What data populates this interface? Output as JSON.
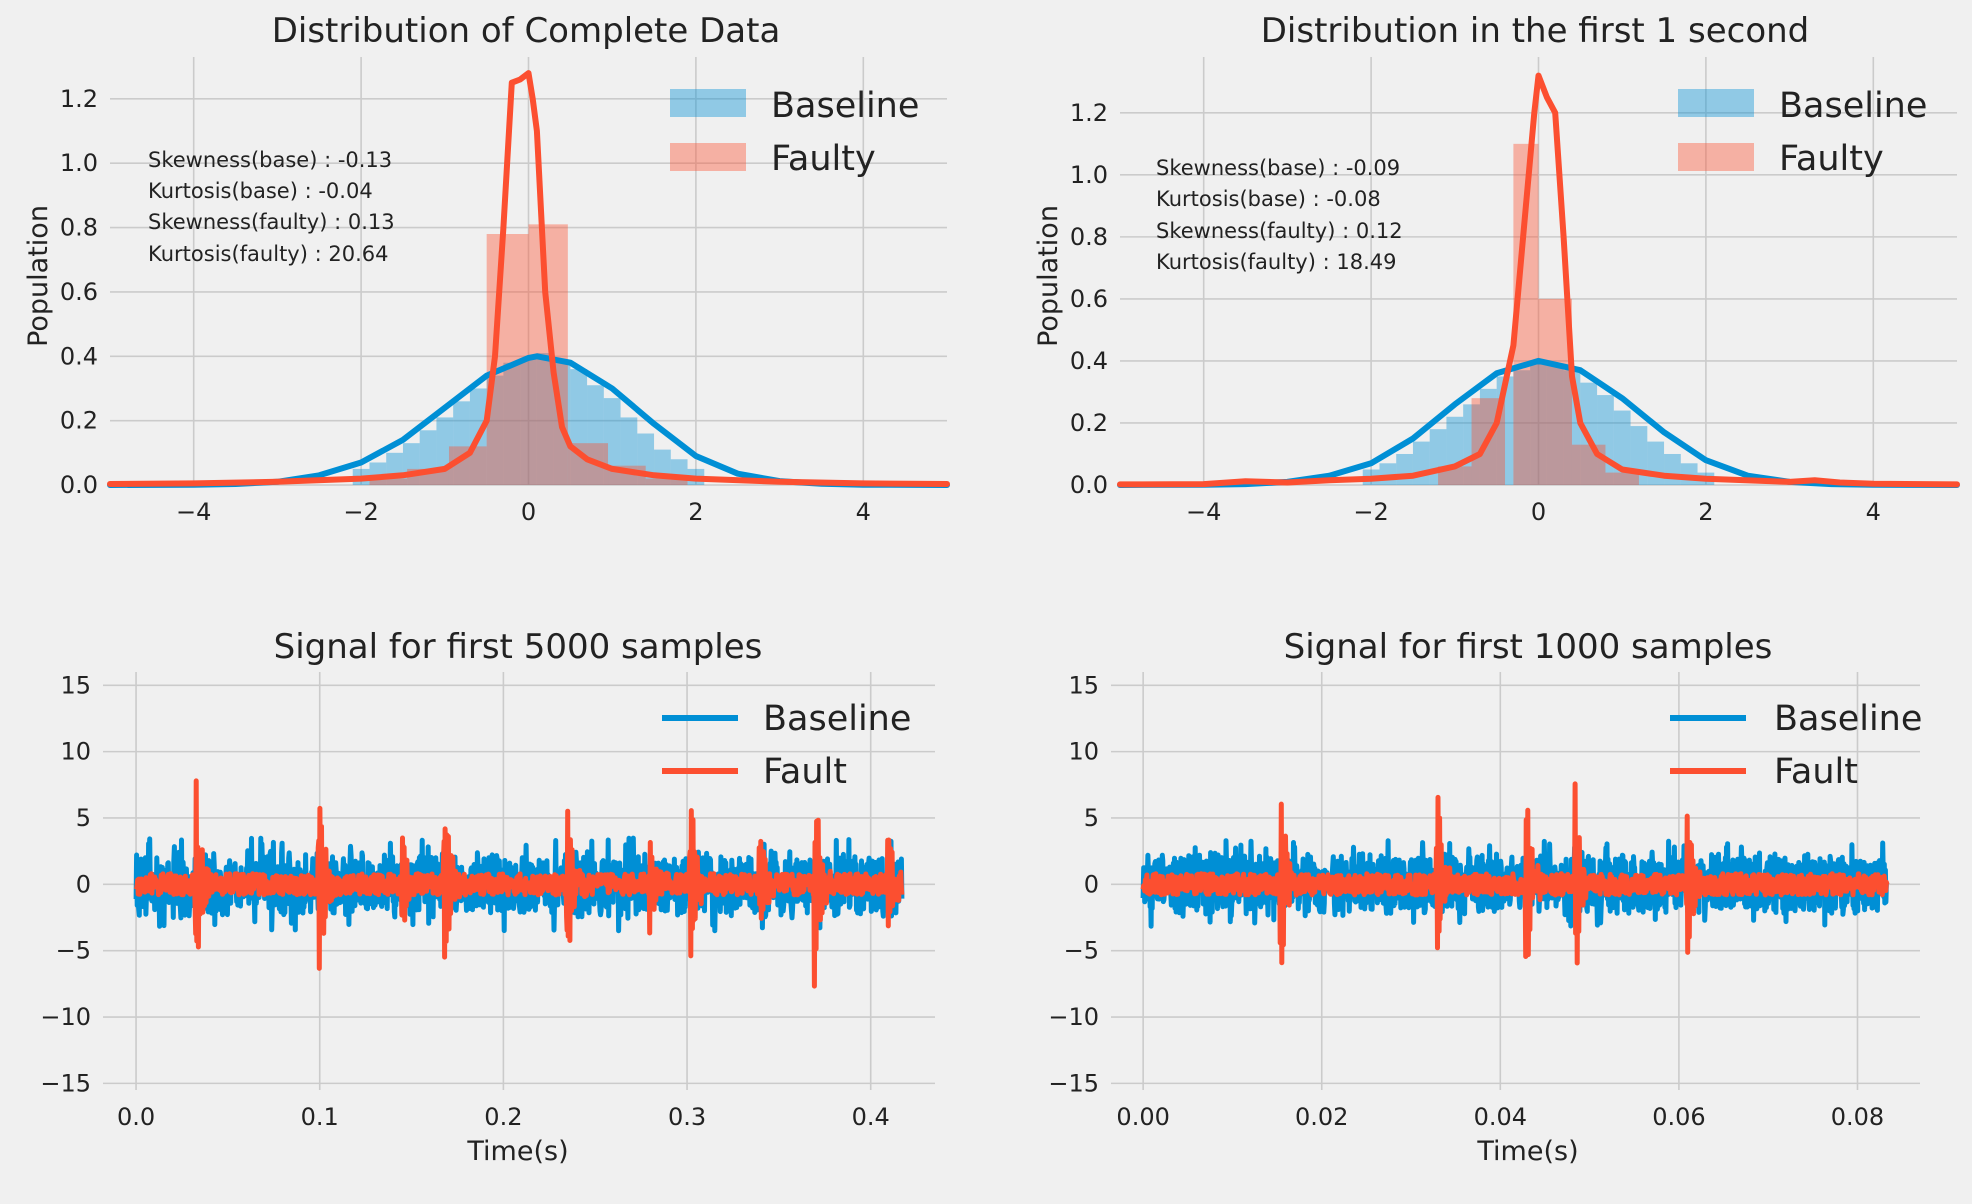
{
  "colors": {
    "baseline": "#008fd5",
    "faulty": "#fc4f30",
    "background": "#f0f0f0",
    "grid": "#cbcbcb"
  },
  "chart_data": [
    {
      "id": "dist_complete",
      "type": "histogram+kde",
      "title": "Distribution of Complete Data",
      "xlabel": "",
      "ylabel": "Population",
      "xlim": [
        -5,
        5
      ],
      "ylim": [
        0,
        1.33
      ],
      "xticks": [
        -4,
        -2,
        0,
        2,
        4
      ],
      "xtick_labels": [
        "−4",
        "−2",
        "0",
        "2",
        "4"
      ],
      "yticks": [
        0,
        0.2,
        0.4,
        0.6,
        0.8,
        1.0,
        1.2
      ],
      "ytick_labels": [
        "0.0",
        "0.2",
        "0.4",
        "0.6",
        "0.8",
        "1.0",
        "1.2"
      ],
      "grid": true,
      "legend_position": "top-right",
      "annotations": [
        "Skewness(base) : -0.13",
        "Kurtosis(base) : -0.04",
        "Skewness(faulty) : 0.13",
        "Kurtosis(faulty) : 20.64"
      ],
      "series": [
        {
          "name": "Baseline",
          "kind": "bars",
          "color": "#008fd5",
          "bins": [
            [
              -2.1,
              -1.9,
              0.05
            ],
            [
              -1.9,
              -1.7,
              0.07
            ],
            [
              -1.7,
              -1.5,
              0.1
            ],
            [
              -1.5,
              -1.3,
              0.13
            ],
            [
              -1.3,
              -1.1,
              0.17
            ],
            [
              -1.1,
              -0.9,
              0.21
            ],
            [
              -0.9,
              -0.7,
              0.26
            ],
            [
              -0.7,
              -0.5,
              0.3
            ],
            [
              -0.5,
              -0.3,
              0.34
            ],
            [
              -0.3,
              -0.1,
              0.38
            ],
            [
              -0.1,
              0.1,
              0.39
            ],
            [
              0.1,
              0.3,
              0.41
            ],
            [
              0.3,
              0.5,
              0.39
            ],
            [
              0.5,
              0.7,
              0.36
            ],
            [
              0.7,
              0.9,
              0.31
            ],
            [
              0.9,
              1.1,
              0.27
            ],
            [
              1.1,
              1.3,
              0.21
            ],
            [
              1.3,
              1.5,
              0.16
            ],
            [
              1.5,
              1.7,
              0.11
            ],
            [
              1.7,
              1.9,
              0.08
            ],
            [
              1.9,
              2.1,
              0.05
            ]
          ]
        },
        {
          "name": "Faulty",
          "kind": "bars",
          "color": "#fc4f30",
          "bins": [
            [
              -1.9,
              -1.45,
              0.02
            ],
            [
              -1.45,
              -0.95,
              0.05
            ],
            [
              -0.95,
              -0.5,
              0.12
            ],
            [
              -0.5,
              0.0,
              0.78
            ],
            [
              0.0,
              0.47,
              0.81
            ],
            [
              0.47,
              0.95,
              0.13
            ],
            [
              0.95,
              1.4,
              0.06
            ],
            [
              1.4,
              1.9,
              0.02
            ]
          ]
        },
        {
          "name": "Baseline",
          "kind": "line",
          "color": "#008fd5",
          "x": [
            -5,
            -4,
            -3.5,
            -3,
            -2.5,
            -2,
            -1.5,
            -1,
            -0.5,
            0,
            0.1,
            0.5,
            1,
            1.5,
            2,
            2.5,
            3,
            3.5,
            4,
            5
          ],
          "y": [
            0,
            0.001,
            0.003,
            0.01,
            0.03,
            0.07,
            0.14,
            0.24,
            0.34,
            0.395,
            0.4,
            0.38,
            0.3,
            0.19,
            0.09,
            0.035,
            0.012,
            0.004,
            0.001,
            0
          ]
        },
        {
          "name": "Faulty",
          "kind": "line",
          "color": "#fc4f30",
          "x": [
            -5,
            -4,
            -3,
            -2,
            -1.5,
            -1,
            -0.7,
            -0.5,
            -0.4,
            -0.3,
            -0.2,
            -0.1,
            0,
            0.05,
            0.1,
            0.2,
            0.3,
            0.4,
            0.5,
            0.7,
            1,
            1.5,
            2,
            3,
            4,
            5
          ],
          "y": [
            0.003,
            0.005,
            0.01,
            0.02,
            0.03,
            0.05,
            0.1,
            0.2,
            0.4,
            0.8,
            1.25,
            1.26,
            1.28,
            1.2,
            1.1,
            0.6,
            0.35,
            0.18,
            0.12,
            0.08,
            0.05,
            0.03,
            0.02,
            0.01,
            0.005,
            0.003
          ]
        }
      ]
    },
    {
      "id": "dist_first_second",
      "type": "histogram+kde",
      "title": "Distribution in the first 1 second",
      "xlabel": "",
      "ylabel": "Population",
      "xlim": [
        -5,
        5
      ],
      "ylim": [
        0,
        1.38
      ],
      "xticks": [
        -4,
        -2,
        0,
        2,
        4
      ],
      "xtick_labels": [
        "−4",
        "−2",
        "0",
        "2",
        "4"
      ],
      "yticks": [
        0,
        0.2,
        0.4,
        0.6,
        0.8,
        1.0,
        1.2
      ],
      "ytick_labels": [
        "0.0",
        "0.2",
        "0.4",
        "0.6",
        "0.8",
        "1.0",
        "1.2"
      ],
      "grid": true,
      "legend_position": "top-right",
      "annotations": [
        "Skewness(base) : -0.09",
        "Kurtosis(base) : -0.08",
        "Skewness(faulty) : 0.12",
        "Kurtosis(faulty) : 18.49"
      ],
      "series": [
        {
          "name": "Baseline",
          "kind": "bars",
          "color": "#008fd5",
          "bins": [
            [
              -2.1,
              -1.9,
              0.05
            ],
            [
              -1.9,
              -1.7,
              0.07
            ],
            [
              -1.7,
              -1.5,
              0.1
            ],
            [
              -1.5,
              -1.3,
              0.14
            ],
            [
              -1.3,
              -1.1,
              0.18
            ],
            [
              -1.1,
              -0.9,
              0.22
            ],
            [
              -0.9,
              -0.7,
              0.26
            ],
            [
              -0.7,
              -0.5,
              0.31
            ],
            [
              -0.5,
              -0.3,
              0.35
            ],
            [
              -0.3,
              -0.1,
              0.37
            ],
            [
              -0.1,
              0.1,
              0.4
            ],
            [
              0.1,
              0.3,
              0.39
            ],
            [
              0.3,
              0.5,
              0.37
            ],
            [
              0.5,
              0.7,
              0.33
            ],
            [
              0.7,
              0.9,
              0.29
            ],
            [
              0.9,
              1.1,
              0.24
            ],
            [
              1.1,
              1.3,
              0.19
            ],
            [
              1.3,
              1.5,
              0.14
            ],
            [
              1.5,
              1.7,
              0.1
            ],
            [
              1.7,
              1.9,
              0.07
            ],
            [
              1.9,
              2.1,
              0.04
            ]
          ]
        },
        {
          "name": "Faulty",
          "kind": "bars",
          "color": "#fc4f30",
          "bins": [
            [
              -1.2,
              -0.8,
              0.06
            ],
            [
              -0.8,
              -0.4,
              0.28
            ],
            [
              -0.3,
              0.0,
              1.1
            ],
            [
              0.0,
              0.4,
              0.6
            ],
            [
              0.4,
              0.8,
              0.13
            ],
            [
              0.8,
              1.2,
              0.04
            ]
          ]
        },
        {
          "name": "Baseline",
          "kind": "line",
          "color": "#008fd5",
          "x": [
            -5,
            -4,
            -3.5,
            -3,
            -2.5,
            -2,
            -1.5,
            -1,
            -0.5,
            0,
            0.5,
            1,
            1.5,
            2,
            2.5,
            3,
            3.5,
            4,
            5
          ],
          "y": [
            0,
            0.001,
            0.003,
            0.01,
            0.03,
            0.07,
            0.15,
            0.26,
            0.36,
            0.4,
            0.37,
            0.28,
            0.17,
            0.08,
            0.03,
            0.01,
            0.003,
            0.001,
            0
          ]
        },
        {
          "name": "Faulty",
          "kind": "line",
          "color": "#fc4f30",
          "x": [
            -5,
            -4,
            -3.5,
            -3,
            -2.5,
            -2,
            -1.5,
            -1,
            -0.7,
            -0.5,
            -0.3,
            -0.15,
            -0.05,
            0,
            0.1,
            0.2,
            0.3,
            0.4,
            0.5,
            0.7,
            1,
            1.5,
            2,
            3,
            3.3,
            3.6,
            4,
            5
          ],
          "y": [
            0.002,
            0.003,
            0.012,
            0.008,
            0.015,
            0.02,
            0.03,
            0.06,
            0.1,
            0.2,
            0.45,
            0.9,
            1.2,
            1.32,
            1.25,
            1.2,
            0.8,
            0.35,
            0.2,
            0.1,
            0.05,
            0.03,
            0.02,
            0.01,
            0.015,
            0.008,
            0.004,
            0.002
          ]
        }
      ]
    },
    {
      "id": "signal_5000",
      "type": "line",
      "title": "Signal for first 5000 samples",
      "xlabel": "Time(s)",
      "ylabel": "",
      "xlim": [
        -0.018,
        0.435
      ],
      "ylim": [
        -15.5,
        16
      ],
      "xticks": [
        0.0,
        0.1,
        0.2,
        0.3,
        0.4
      ],
      "xtick_labels": [
        "0.0",
        "0.1",
        "0.2",
        "0.3",
        "0.4"
      ],
      "yticks": [
        -15,
        -10,
        -5,
        0,
        5,
        10,
        15
      ],
      "ytick_labels": [
        "−15",
        "−10",
        "−5",
        "0",
        "5",
        "10",
        "15"
      ],
      "grid": true,
      "legend_position": "top-right",
      "duration": 0.417,
      "series": [
        {
          "name": "Baseline",
          "color": "#008fd5",
          "amplitude_range": [
            -3.5,
            3.5
          ]
        },
        {
          "name": "Fault",
          "color": "#fc4f30",
          "amplitude_range": [
            -8.6,
            8.6
          ],
          "spikes_at": [
            0.033,
            0.1,
            0.168,
            0.235,
            0.302,
            0.37,
            0.145,
            0.28,
            0.34,
            0.41
          ]
        }
      ]
    },
    {
      "id": "signal_1000",
      "type": "line",
      "title": "Signal for  first 1000 samples",
      "xlabel": "Time(s)",
      "ylabel": "",
      "xlim": [
        -0.0036,
        0.087
      ],
      "ylim": [
        -15.5,
        16
      ],
      "xticks": [
        0.0,
        0.02,
        0.04,
        0.06,
        0.08
      ],
      "xtick_labels": [
        "0.00",
        "0.02",
        "0.04",
        "0.06",
        "0.08"
      ],
      "yticks": [
        -15,
        -10,
        -5,
        0,
        5,
        10,
        15
      ],
      "ytick_labels": [
        "−15",
        "−10",
        "−5",
        "0",
        "5",
        "10",
        "15"
      ],
      "grid": true,
      "legend_position": "top-right",
      "duration": 0.0833,
      "series": [
        {
          "name": "Baseline",
          "color": "#008fd5",
          "amplitude_range": [
            -3.3,
            3.3
          ]
        },
        {
          "name": "Fault",
          "color": "#fc4f30",
          "amplitude_range": [
            -8.2,
            8.3
          ],
          "spikes_at": [
            0.033,
            0.0155,
            0.043,
            0.061,
            0.0485
          ]
        }
      ]
    }
  ]
}
